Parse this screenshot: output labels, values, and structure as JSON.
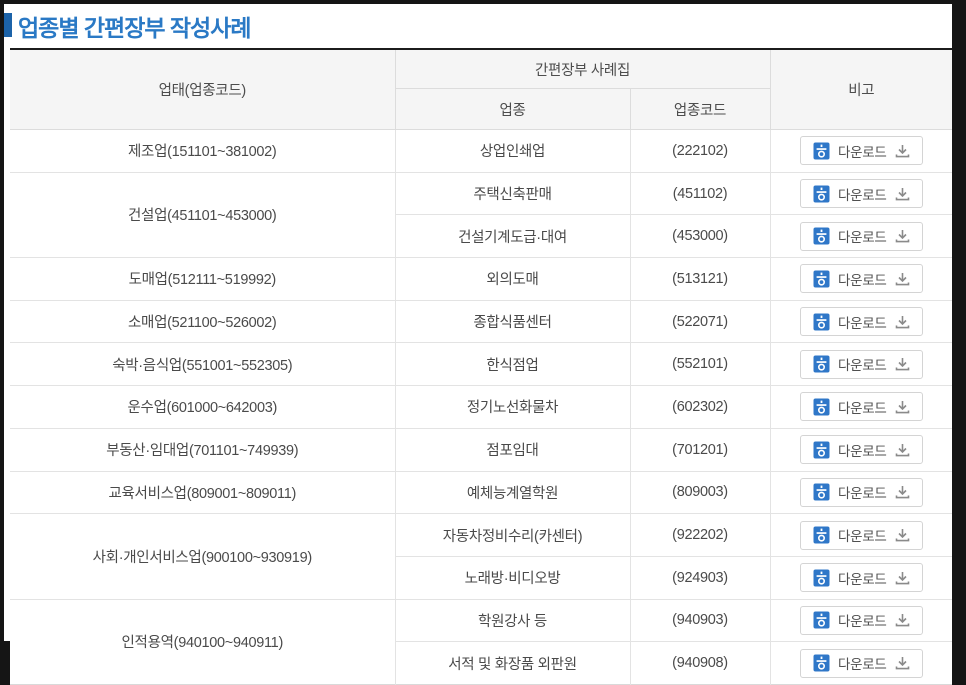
{
  "title": "업종별 간편장부 작성사례",
  "colors": {
    "accent_blue": "#2a79c5",
    "bullet_blue": "#1c63a9",
    "hwp_icon_blue": "#2f77c8",
    "frame_black": "#151515",
    "header_bg": "#f5f5f5"
  },
  "table": {
    "headers": {
      "business_type": "업태(업종코드)",
      "casebook": "간편장부 사례집",
      "industry": "업종",
      "industry_code": "업종코드",
      "note": "비고"
    },
    "download_label": "다운로드",
    "groups": [
      {
        "type": "제조업(151101~381002)",
        "items": [
          {
            "industry": "상업인쇄업",
            "code": "(222102)"
          }
        ]
      },
      {
        "type": "건설업(451101~453000)",
        "items": [
          {
            "industry": "주택신축판매",
            "code": "(451102)"
          },
          {
            "industry": "건설기계도급·대여",
            "code": "(453000)"
          }
        ]
      },
      {
        "type": "도매업(512111~519992)",
        "items": [
          {
            "industry": "외의도매",
            "code": "(513121)"
          }
        ]
      },
      {
        "type": "소매업(521100~526002)",
        "items": [
          {
            "industry": "종합식품센터",
            "code": "(522071)"
          }
        ]
      },
      {
        "type": "숙박·음식업(551001~552305)",
        "items": [
          {
            "industry": "한식점업",
            "code": "(552101)"
          }
        ]
      },
      {
        "type": "운수업(601000~642003)",
        "items": [
          {
            "industry": "정기노선화물차",
            "code": "(602302)"
          }
        ]
      },
      {
        "type": "부동산·임대업(701101~749939)",
        "items": [
          {
            "industry": "점포임대",
            "code": "(701201)"
          }
        ]
      },
      {
        "type": "교육서비스업(809001~809011)",
        "items": [
          {
            "industry": "예체능계열학원",
            "code": "(809003)"
          }
        ]
      },
      {
        "type": "사회·개인서비스업(900100~930919)",
        "items": [
          {
            "industry": "자동차정비수리(카센터)",
            "code": "(922202)"
          },
          {
            "industry": "노래방·비디오방",
            "code": "(924903)"
          }
        ]
      },
      {
        "type": "인적용역(940100~940911)",
        "items": [
          {
            "industry": "학원강사 등",
            "code": "(940903)"
          },
          {
            "industry": "서적 및 화장품 외판원",
            "code": "(940908)"
          }
        ]
      }
    ]
  }
}
